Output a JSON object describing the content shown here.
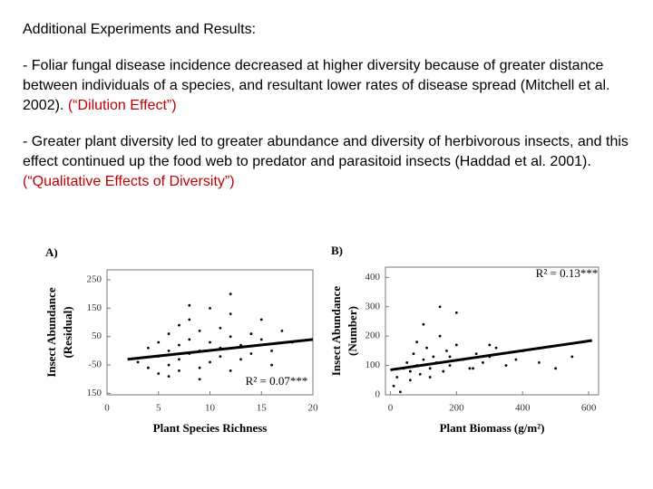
{
  "header": {
    "title": "Additional Experiments and Results:"
  },
  "paragraphs": [
    {
      "text": " - Foliar fungal disease incidence decreased at higher diversity because of greater distance between individuals of a species, and resultant lower rates of disease spread (Mitchell et al. 2002). ",
      "highlight": "(“Dilution Effect”)"
    },
    {
      "text": " - Greater plant diversity led to greater abundance and diversity of herbivorous insects, and this effect continued up the food web to predator and parasitoid insects (Haddad et al. 2001). ",
      "highlight": "(“Qualitative Effects of Diversity”)"
    }
  ],
  "chart_data": [
    {
      "type": "scatter",
      "title": "A)",
      "ylabel": [
        "Insect Abundance",
        "(Residual)"
      ],
      "xlabel": "Plant Species Richness",
      "annotation": "R² = 0.07***",
      "xlim": [
        0,
        20
      ],
      "ylim": [
        -155,
        285
      ],
      "xticks": [
        0,
        5,
        10,
        15,
        20
      ],
      "yticks": [
        250,
        150,
        50,
        -50,
        {
          "value": -150,
          "label": "150"
        }
      ],
      "color": "#000000",
      "x": [
        3,
        4,
        4,
        5,
        5,
        5,
        6,
        6,
        6,
        7,
        7,
        7,
        7,
        8,
        8,
        8,
        9,
        9,
        9,
        10,
        10,
        10,
        11,
        11,
        11,
        12,
        12,
        12,
        13,
        13,
        14,
        14,
        15,
        15,
        16,
        16,
        17,
        18,
        12,
        9,
        8,
        6
      ],
      "y": [
        -40,
        -60,
        10,
        -20,
        30,
        -80,
        0,
        60,
        -50,
        20,
        90,
        -30,
        -70,
        40,
        110,
        -10,
        0,
        70,
        -60,
        30,
        150,
        -40,
        10,
        80,
        -20,
        50,
        -70,
        130,
        20,
        -30,
        60,
        -10,
        40,
        110,
        0,
        -50,
        70,
        30,
        200,
        -100,
        160,
        -90
      ],
      "trend": {
        "x": [
          2,
          20
        ],
        "y": [
          -30,
          40
        ]
      }
    },
    {
      "type": "scatter",
      "title": "B)",
      "ylabel": [
        "Insect Abundance",
        "(Number)"
      ],
      "xlabel": "Plant Biomass (g/m²)",
      "annotation": "R² = 0.13***",
      "xlim": [
        -15,
        630
      ],
      "ylim": [
        0,
        435
      ],
      "xticks": [
        0,
        200,
        400,
        600
      ],
      "yticks": [
        400,
        300,
        200,
        100,
        0
      ],
      "color": "#000000",
      "x": [
        10,
        20,
        40,
        50,
        60,
        70,
        80,
        90,
        100,
        110,
        120,
        130,
        140,
        150,
        160,
        170,
        180,
        200,
        220,
        240,
        260,
        280,
        300,
        320,
        350,
        380,
        400,
        450,
        500,
        550,
        30,
        60,
        100,
        150,
        200,
        250,
        300,
        120,
        80,
        180
      ],
      "y": [
        30,
        60,
        90,
        110,
        80,
        140,
        100,
        70,
        120,
        160,
        90,
        130,
        110,
        200,
        80,
        150,
        100,
        170,
        120,
        90,
        140,
        110,
        130,
        160,
        100,
        120,
        150,
        110,
        90,
        130,
        10,
        50,
        240,
        300,
        280,
        90,
        170,
        60,
        180,
        130
      ],
      "trend": {
        "x": [
          0,
          610
        ],
        "y": [
          85,
          185
        ]
      }
    }
  ]
}
